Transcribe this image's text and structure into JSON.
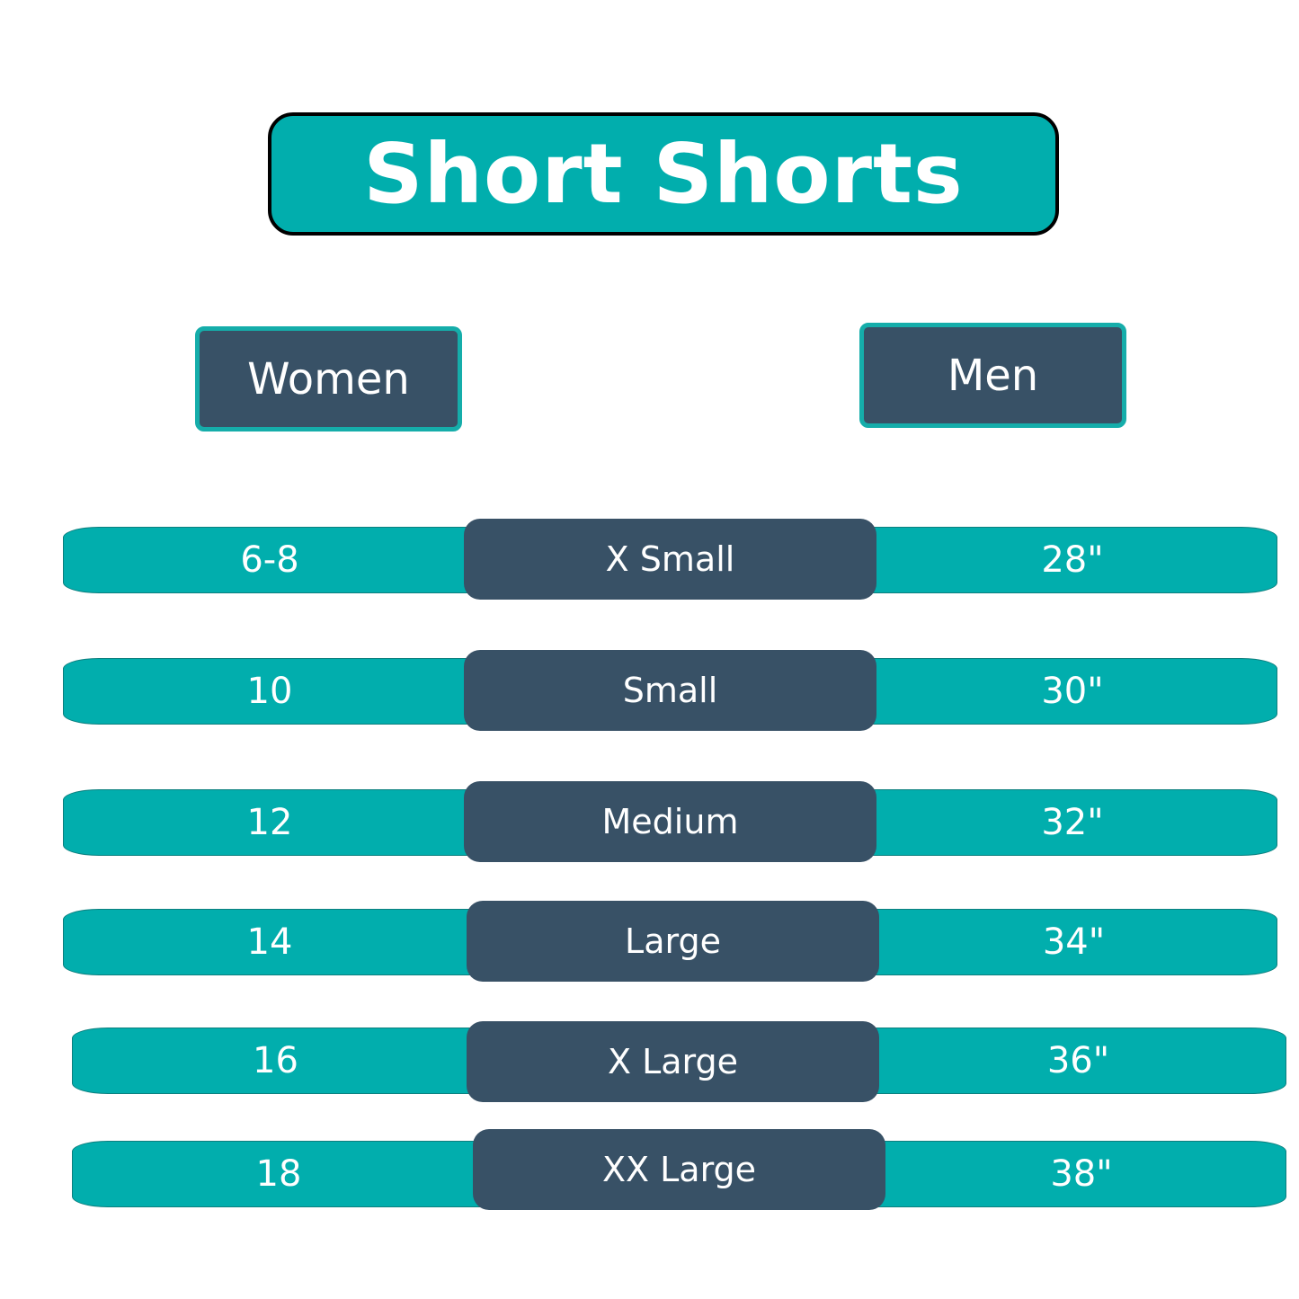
{
  "title": "Short Shorts",
  "headers": {
    "women": "Women",
    "men": "Men"
  },
  "colors": {
    "teal": "#01AEAD",
    "slate": "#385166"
  },
  "rows": [
    {
      "women": "6-8",
      "size": "X Small",
      "men": "28\""
    },
    {
      "women": "10",
      "size": "Small",
      "men": "30\""
    },
    {
      "women": "12",
      "size": "Medium",
      "men": "32\""
    },
    {
      "women": "14",
      "size": "Large",
      "men": "34\""
    },
    {
      "women": "16",
      "size": "X Large",
      "men": "36\""
    },
    {
      "women": "18",
      "size": "XX  Large",
      "men": "38\""
    }
  ]
}
